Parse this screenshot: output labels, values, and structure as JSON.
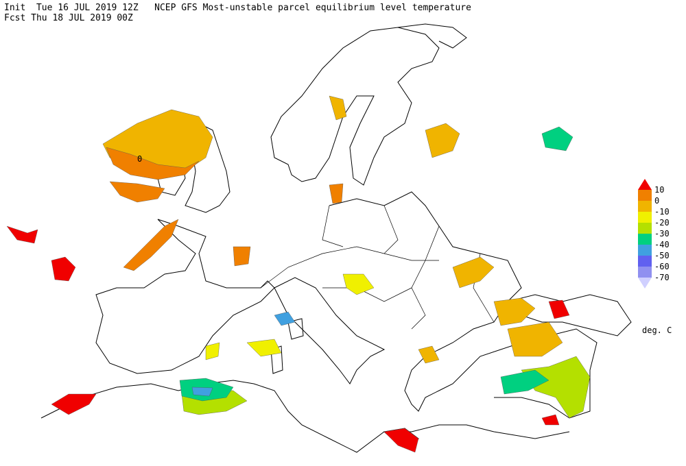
{
  "header": {
    "line1": "Init  Tue 16 JUL 2019 12Z   NCEP GFS Most-unstable parcel equilibrium level temperature",
    "line2": "Fcst Thu 18 JUL 2019 00Z"
  },
  "legend": {
    "labels": [
      10,
      0,
      -10,
      -20,
      -30,
      -40,
      -50,
      -60,
      -70
    ],
    "colors": [
      "#f00000",
      "#f08000",
      "#f0b400",
      "#f0f000",
      "#b4e000",
      "#00d080",
      "#40a0e0",
      "#6060f0",
      "#9090f0",
      "#d0d0ff"
    ],
    "unit": "deg. C"
  },
  "map": {
    "contour_label": "0"
  }
}
